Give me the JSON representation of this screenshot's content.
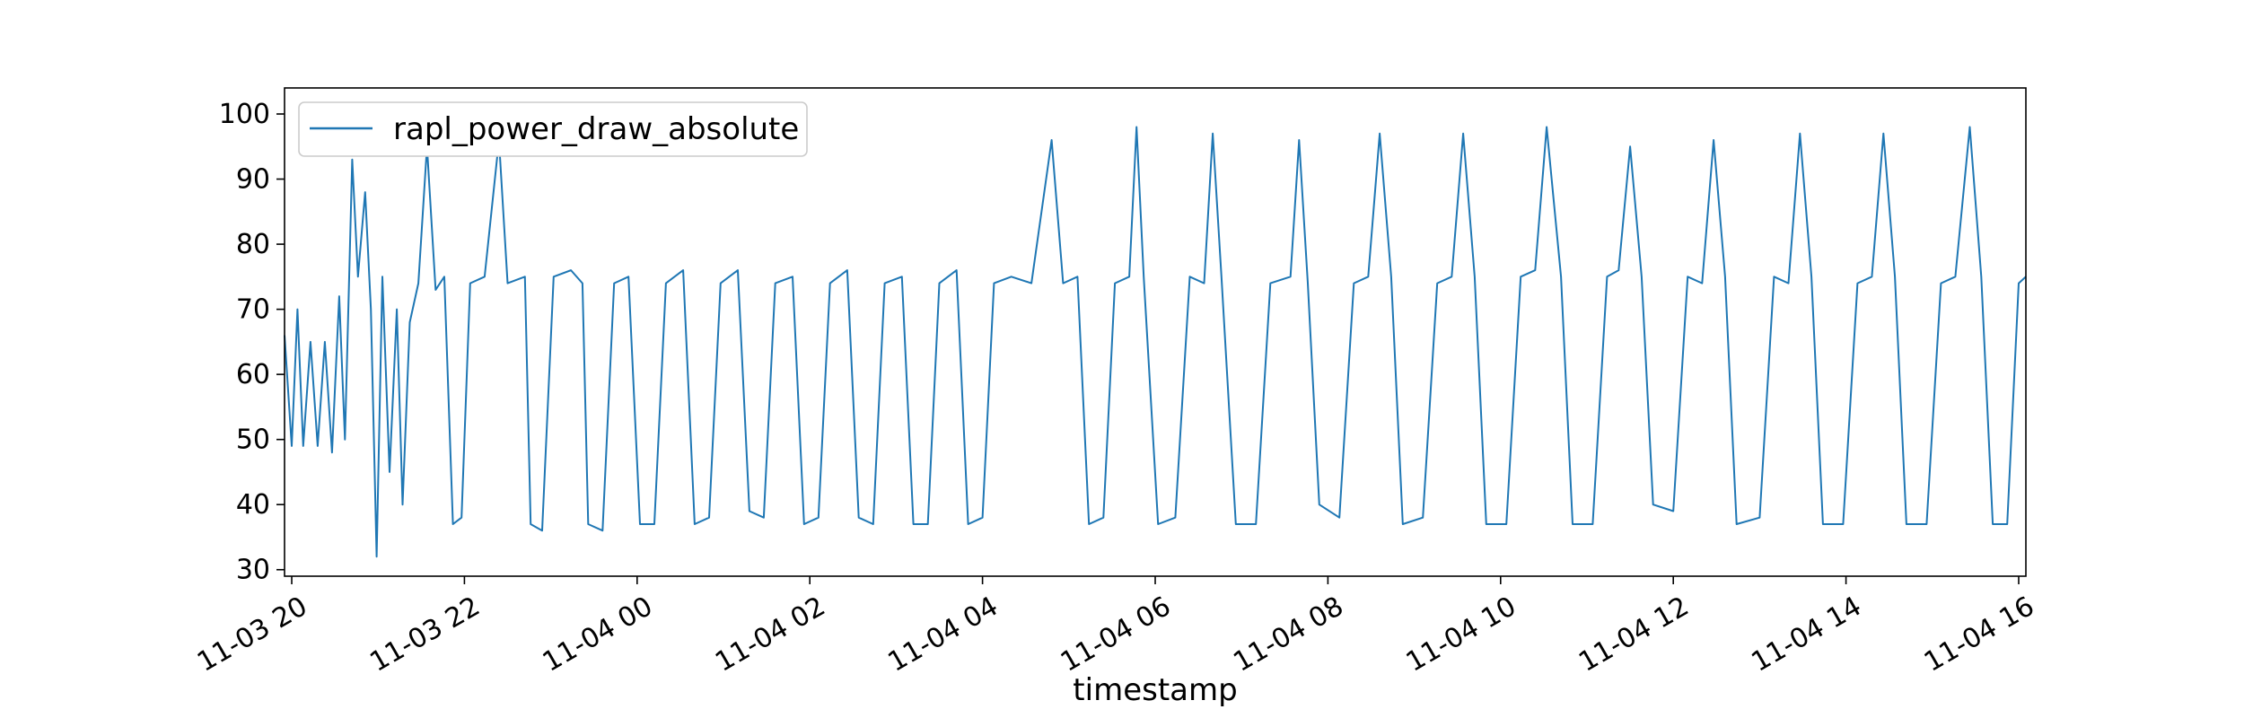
{
  "chart_data": {
    "type": "line",
    "title": "",
    "xlabel": "timestamp",
    "ylabel": "",
    "x_type": "datetime",
    "xlim": [
      "2023-11-03T19:55",
      "2023-11-04T16:05"
    ],
    "ylim": [
      29,
      104
    ],
    "x_ticks": [
      {
        "value": "2023-11-03T20:00",
        "label": "11-03 20"
      },
      {
        "value": "2023-11-03T22:00",
        "label": "11-03 22"
      },
      {
        "value": "2023-11-04T00:00",
        "label": "11-04 00"
      },
      {
        "value": "2023-11-04T02:00",
        "label": "11-04 02"
      },
      {
        "value": "2023-11-04T04:00",
        "label": "11-04 04"
      },
      {
        "value": "2023-11-04T06:00",
        "label": "11-04 06"
      },
      {
        "value": "2023-11-04T08:00",
        "label": "11-04 08"
      },
      {
        "value": "2023-11-04T10:00",
        "label": "11-04 10"
      },
      {
        "value": "2023-11-04T12:00",
        "label": "11-04 12"
      },
      {
        "value": "2023-11-04T14:00",
        "label": "11-04 14"
      },
      {
        "value": "2023-11-04T16:00",
        "label": "11-04 16"
      }
    ],
    "y_ticks": [
      30,
      40,
      50,
      60,
      70,
      80,
      90,
      100
    ],
    "grid": false,
    "legend": {
      "position": "upper-left"
    },
    "series": [
      {
        "name": "rapl_power_draw_absolute",
        "color": "#1f77b4",
        "points": [
          [
            "2023-11-03T19:55",
            66
          ],
          [
            "2023-11-03T20:00",
            49
          ],
          [
            "2023-11-03T20:04",
            70
          ],
          [
            "2023-11-03T20:08",
            49
          ],
          [
            "2023-11-03T20:13",
            65
          ],
          [
            "2023-11-03T20:18",
            49
          ],
          [
            "2023-11-03T20:23",
            65
          ],
          [
            "2023-11-03T20:28",
            48
          ],
          [
            "2023-11-03T20:33",
            72
          ],
          [
            "2023-11-03T20:37",
            50
          ],
          [
            "2023-11-03T20:42",
            93
          ],
          [
            "2023-11-03T20:46",
            75
          ],
          [
            "2023-11-03T20:51",
            88
          ],
          [
            "2023-11-03T20:55",
            70
          ],
          [
            "2023-11-03T20:59",
            32
          ],
          [
            "2023-11-03T21:03",
            75
          ],
          [
            "2023-11-03T21:08",
            45
          ],
          [
            "2023-11-03T21:13",
            70
          ],
          [
            "2023-11-03T21:17",
            40
          ],
          [
            "2023-11-03T21:22",
            68
          ],
          [
            "2023-11-03T21:28",
            74
          ],
          [
            "2023-11-03T21:34",
            95
          ],
          [
            "2023-11-03T21:40",
            73
          ],
          [
            "2023-11-03T21:46",
            75
          ],
          [
            "2023-11-03T21:52",
            37
          ],
          [
            "2023-11-03T21:58",
            38
          ],
          [
            "2023-11-03T22:04",
            74
          ],
          [
            "2023-11-03T22:14",
            75
          ],
          [
            "2023-11-03T22:24",
            96
          ],
          [
            "2023-11-03T22:30",
            74
          ],
          [
            "2023-11-03T22:42",
            75
          ],
          [
            "2023-11-03T22:46",
            37
          ],
          [
            "2023-11-03T22:54",
            36
          ],
          [
            "2023-11-03T23:02",
            75
          ],
          [
            "2023-11-03T23:14",
            76
          ],
          [
            "2023-11-03T23:22",
            74
          ],
          [
            "2023-11-03T23:26",
            37
          ],
          [
            "2023-11-03T23:36",
            36
          ],
          [
            "2023-11-03T23:44",
            74
          ],
          [
            "2023-11-03T23:54",
            75
          ],
          [
            "2023-11-04T00:02",
            37
          ],
          [
            "2023-11-04T00:12",
            37
          ],
          [
            "2023-11-04T00:20",
            74
          ],
          [
            "2023-11-04T00:32",
            76
          ],
          [
            "2023-11-04T00:40",
            37
          ],
          [
            "2023-11-04T00:50",
            38
          ],
          [
            "2023-11-04T00:58",
            74
          ],
          [
            "2023-11-04T01:10",
            76
          ],
          [
            "2023-11-04T01:18",
            39
          ],
          [
            "2023-11-04T01:28",
            38
          ],
          [
            "2023-11-04T01:36",
            74
          ],
          [
            "2023-11-04T01:48",
            75
          ],
          [
            "2023-11-04T01:56",
            37
          ],
          [
            "2023-11-04T02:06",
            38
          ],
          [
            "2023-11-04T02:14",
            74
          ],
          [
            "2023-11-04T02:26",
            76
          ],
          [
            "2023-11-04T02:34",
            38
          ],
          [
            "2023-11-04T02:44",
            37
          ],
          [
            "2023-11-04T02:52",
            74
          ],
          [
            "2023-11-04T03:04",
            75
          ],
          [
            "2023-11-04T03:12",
            37
          ],
          [
            "2023-11-04T03:22",
            37
          ],
          [
            "2023-11-04T03:30",
            74
          ],
          [
            "2023-11-04T03:42",
            76
          ],
          [
            "2023-11-04T03:50",
            37
          ],
          [
            "2023-11-04T04:00",
            38
          ],
          [
            "2023-11-04T04:08",
            74
          ],
          [
            "2023-11-04T04:20",
            75
          ],
          [
            "2023-11-04T04:34",
            74
          ],
          [
            "2023-11-04T04:48",
            96
          ],
          [
            "2023-11-04T04:56",
            74
          ],
          [
            "2023-11-04T05:06",
            75
          ],
          [
            "2023-11-04T05:14",
            37
          ],
          [
            "2023-11-04T05:24",
            38
          ],
          [
            "2023-11-04T05:32",
            74
          ],
          [
            "2023-11-04T05:42",
            75
          ],
          [
            "2023-11-04T05:47",
            98
          ],
          [
            "2023-11-04T05:52",
            75
          ],
          [
            "2023-11-04T06:02",
            37
          ],
          [
            "2023-11-04T06:14",
            38
          ],
          [
            "2023-11-04T06:24",
            75
          ],
          [
            "2023-11-04T06:34",
            74
          ],
          [
            "2023-11-04T06:40",
            97
          ],
          [
            "2023-11-04T06:46",
            75
          ],
          [
            "2023-11-04T06:56",
            37
          ],
          [
            "2023-11-04T07:10",
            37
          ],
          [
            "2023-11-04T07:20",
            74
          ],
          [
            "2023-11-04T07:34",
            75
          ],
          [
            "2023-11-04T07:40",
            96
          ],
          [
            "2023-11-04T07:46",
            74
          ],
          [
            "2023-11-04T07:54",
            40
          ],
          [
            "2023-11-04T08:08",
            38
          ],
          [
            "2023-11-04T08:18",
            74
          ],
          [
            "2023-11-04T08:28",
            75
          ],
          [
            "2023-11-04T08:36",
            97
          ],
          [
            "2023-11-04T08:44",
            75
          ],
          [
            "2023-11-04T08:52",
            37
          ],
          [
            "2023-11-04T09:06",
            38
          ],
          [
            "2023-11-04T09:16",
            74
          ],
          [
            "2023-11-04T09:26",
            75
          ],
          [
            "2023-11-04T09:34",
            97
          ],
          [
            "2023-11-04T09:42",
            75
          ],
          [
            "2023-11-04T09:50",
            37
          ],
          [
            "2023-11-04T10:04",
            37
          ],
          [
            "2023-11-04T10:14",
            75
          ],
          [
            "2023-11-04T10:24",
            76
          ],
          [
            "2023-11-04T10:32",
            98
          ],
          [
            "2023-11-04T10:42",
            75
          ],
          [
            "2023-11-04T10:50",
            37
          ],
          [
            "2023-11-04T11:04",
            37
          ],
          [
            "2023-11-04T11:14",
            75
          ],
          [
            "2023-11-04T11:22",
            76
          ],
          [
            "2023-11-04T11:30",
            95
          ],
          [
            "2023-11-04T11:38",
            75
          ],
          [
            "2023-11-04T11:46",
            40
          ],
          [
            "2023-11-04T12:00",
            39
          ],
          [
            "2023-11-04T12:10",
            75
          ],
          [
            "2023-11-04T12:20",
            74
          ],
          [
            "2023-11-04T12:28",
            96
          ],
          [
            "2023-11-04T12:36",
            75
          ],
          [
            "2023-11-04T12:44",
            37
          ],
          [
            "2023-11-04T13:00",
            38
          ],
          [
            "2023-11-04T13:10",
            75
          ],
          [
            "2023-11-04T13:20",
            74
          ],
          [
            "2023-11-04T13:28",
            97
          ],
          [
            "2023-11-04T13:36",
            75
          ],
          [
            "2023-11-04T13:44",
            37
          ],
          [
            "2023-11-04T13:58",
            37
          ],
          [
            "2023-11-04T14:08",
            74
          ],
          [
            "2023-11-04T14:18",
            75
          ],
          [
            "2023-11-04T14:26",
            97
          ],
          [
            "2023-11-04T14:34",
            75
          ],
          [
            "2023-11-04T14:42",
            37
          ],
          [
            "2023-11-04T14:56",
            37
          ],
          [
            "2023-11-04T15:06",
            74
          ],
          [
            "2023-11-04T15:16",
            75
          ],
          [
            "2023-11-04T15:26",
            98
          ],
          [
            "2023-11-04T15:34",
            75
          ],
          [
            "2023-11-04T15:42",
            37
          ],
          [
            "2023-11-04T15:52",
            37
          ],
          [
            "2023-11-04T16:00",
            74
          ],
          [
            "2023-11-04T16:05",
            75
          ]
        ]
      }
    ]
  }
}
